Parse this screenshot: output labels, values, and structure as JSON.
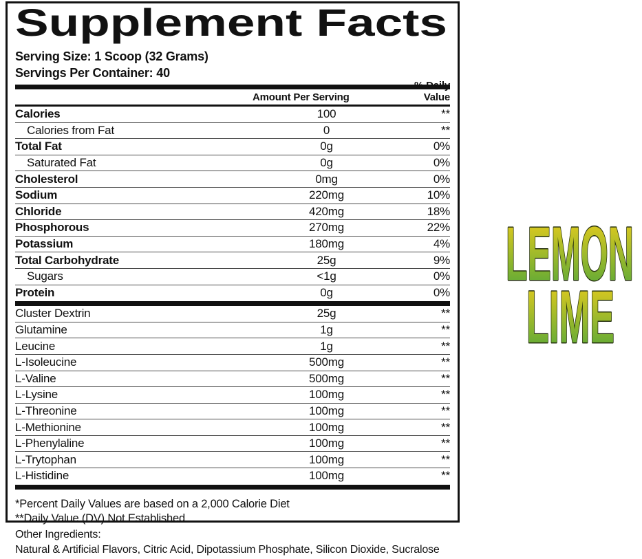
{
  "label": {
    "title": "Supplement Facts",
    "serving_size": "Serving Size: 1 Scoop (32 Grams)",
    "servings_per_container": "Servings Per Container: 40",
    "columns": {
      "amount": "Amount Per Serving",
      "daily_value": "% Daily Value"
    },
    "nutrients": [
      {
        "name": "Calories",
        "amount": "100",
        "dv": "**",
        "style": "bold"
      },
      {
        "name": "Calories from Fat",
        "amount": "0",
        "dv": "**",
        "style": "indent"
      },
      {
        "name": "Total Fat",
        "amount": "0g",
        "dv": "0%",
        "style": "bold"
      },
      {
        "name": "Saturated Fat",
        "amount": "0g",
        "dv": "0%",
        "style": "indent"
      },
      {
        "name": "Cholesterol",
        "amount": "0mg",
        "dv": "0%",
        "style": "bold"
      },
      {
        "name": "Sodium",
        "amount": "220mg",
        "dv": "10%",
        "style": "bold"
      },
      {
        "name": "Chloride",
        "amount": "420mg",
        "dv": "18%",
        "style": "bold"
      },
      {
        "name": "Phosphorous",
        "amount": "270mg",
        "dv": "22%",
        "style": "bold"
      },
      {
        "name": "Potassium",
        "amount": "180mg",
        "dv": "4%",
        "style": "bold"
      },
      {
        "name": "Total Carbohydrate",
        "amount": "25g",
        "dv": "9%",
        "style": "bold"
      },
      {
        "name": "Sugars",
        "amount": "<1g",
        "dv": "0%",
        "style": "indent"
      },
      {
        "name": "Protein",
        "amount": "0g",
        "dv": "0%",
        "style": "bold"
      }
    ],
    "ingredients": [
      {
        "name": "Cluster Dextrin",
        "amount": "25g",
        "dv": "**"
      },
      {
        "name": "Glutamine",
        "amount": "1g",
        "dv": "**"
      },
      {
        "name": "Leucine",
        "amount": "1g",
        "dv": "**"
      },
      {
        "name": "L-Isoleucine",
        "amount": "500mg",
        "dv": "**"
      },
      {
        "name": "L-Valine",
        "amount": "500mg",
        "dv": "**"
      },
      {
        "name": "L-Lysine",
        "amount": "100mg",
        "dv": "**"
      },
      {
        "name": "L-Threonine",
        "amount": "100mg",
        "dv": "**"
      },
      {
        "name": "L-Methionine",
        "amount": "100mg",
        "dv": "**"
      },
      {
        "name": "L-Phenylaline",
        "amount": "100mg",
        "dv": "**"
      },
      {
        "name": "L-Trytophan",
        "amount": "100mg",
        "dv": "**"
      },
      {
        "name": "L-Histidine",
        "amount": "100mg",
        "dv": "**"
      }
    ],
    "footnote_1": "*Percent Daily Values are based on a 2,000 Calorie Diet",
    "footnote_2": "**Daily Value (DV) Not Established"
  },
  "other_ingredients": {
    "heading": "Other Ingredients:",
    "list": "Natural & Artificial Flavors, Citric Acid, Dipotassium Phosphate, Silicon Dioxide, Sucralose"
  },
  "flavor": {
    "line1": "LEMON",
    "line2": "LIME",
    "gradient_top": "#F2CE1B",
    "gradient_bottom": "#4CA53A",
    "outline": "#26300F"
  }
}
